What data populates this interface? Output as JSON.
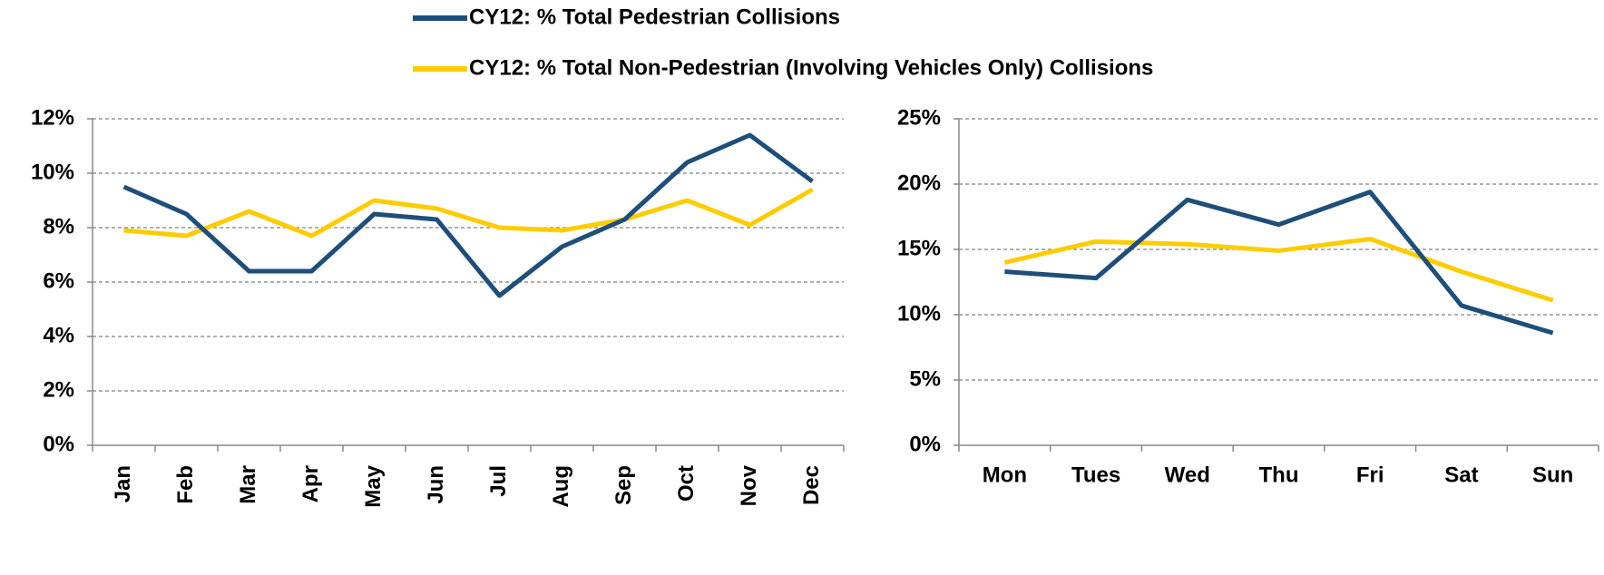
{
  "chart_data": [
    {
      "type": "line",
      "categories": [
        "Jan",
        "Feb",
        "Mar",
        "Apr",
        "May",
        "Jun",
        "Jul",
        "Aug",
        "Sep",
        "Oct",
        "Nov",
        "Dec"
      ],
      "series": [
        {
          "name": "CY12: % Total Pedestrian Collisions",
          "color": "#1f4e79",
          "values": [
            9.5,
            8.5,
            6.4,
            6.4,
            8.5,
            8.3,
            5.5,
            7.3,
            8.3,
            10.4,
            11.4,
            9.7
          ]
        },
        {
          "name": "CY12: % Total Non-Pedestrian (Involving Vehicles Only) Collisions",
          "color": "#ffcc00",
          "values": [
            7.9,
            7.7,
            8.6,
            7.7,
            9.0,
            8.7,
            8.0,
            7.9,
            8.3,
            9.0,
            8.1,
            9.4
          ]
        }
      ],
      "ylim": [
        0,
        12
      ],
      "yticks": [
        {
          "value": 0,
          "label": "0%"
        },
        {
          "value": 2,
          "label": "2%"
        },
        {
          "value": 4,
          "label": "4%"
        },
        {
          "value": 6,
          "label": "6%"
        },
        {
          "value": 8,
          "label": "8%"
        },
        {
          "value": 10,
          "label": "10%"
        },
        {
          "value": 12,
          "label": "12%"
        }
      ],
      "grid": true
    },
    {
      "type": "line",
      "categories": [
        "Mon",
        "Tues",
        "Wed",
        "Thu",
        "Fri",
        "Sat",
        "Sun"
      ],
      "series": [
        {
          "color": "#1f4e79",
          "values": [
            13.3,
            12.8,
            18.8,
            16.9,
            19.4,
            10.7,
            8.6
          ]
        },
        {
          "color": "#ffcc00",
          "values": [
            14.0,
            15.6,
            15.4,
            14.9,
            15.8,
            13.3,
            11.1
          ]
        }
      ],
      "ylim": [
        0,
        25
      ],
      "yticks": [
        {
          "value": 0,
          "label": "0%"
        },
        {
          "value": 5,
          "label": "5%"
        },
        {
          "value": 10,
          "label": "10%"
        },
        {
          "value": 15,
          "label": "15%"
        },
        {
          "value": 20,
          "label": "20%"
        },
        {
          "value": 25,
          "label": "25%"
        }
      ],
      "grid": true
    }
  ]
}
